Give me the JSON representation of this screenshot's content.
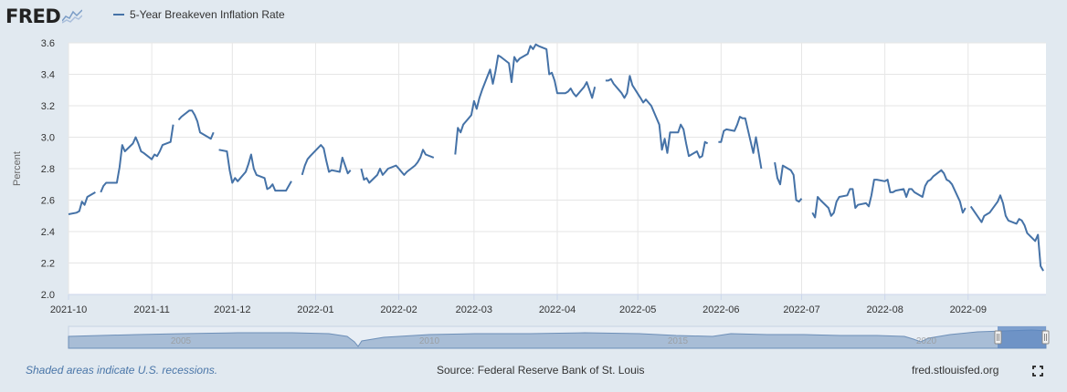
{
  "header": {
    "logo_text": "FRED",
    "legend_label": "5-Year Breakeven Inflation Rate"
  },
  "footer": {
    "recession_note": "Shaded areas indicate U.S. recessions.",
    "source": "Source: Federal Reserve Bank of St. Louis",
    "site": "fred.stlouisfed.org",
    "fullscreen_icon": "fullscreen-icon"
  },
  "colors": {
    "page_background": "#e1e9f0",
    "plot_background": "#ffffff",
    "series_line": "#4572a7",
    "gridline": "#e6e6e6",
    "navigator_fill": "#a8bdd6",
    "navigator_stroke": "#6d8fb8",
    "navigator_selected": "#5b86c0"
  },
  "navigator": {
    "year_labels": [
      "2005",
      "2010",
      "2015",
      "2020"
    ],
    "handle_icon": "drag-handle-icon"
  },
  "chart_data": {
    "type": "line",
    "title": "5-Year Breakeven Inflation Rate",
    "ylabel": "Percent",
    "ylim": [
      2.0,
      3.6
    ],
    "yticks": [
      "2.0",
      "2.2",
      "2.4",
      "2.6",
      "2.8",
      "3.0",
      "3.2",
      "3.4",
      "3.6"
    ],
    "xlim": [
      "2021-10-01",
      "2022-09-30"
    ],
    "xticks": [
      "2021-10",
      "2021-11",
      "2021-12",
      "2022-01",
      "2022-02",
      "2022-03",
      "2022-04",
      "2022-05",
      "2022-06",
      "2022-07",
      "2022-08",
      "2022-09"
    ],
    "grid": true,
    "legend_position": "top-left",
    "series": [
      {
        "name": "5-Year Breakeven Inflation Rate",
        "points": [
          [
            "2021-10-01",
            2.51
          ],
          [
            "2021-10-04",
            2.52
          ],
          [
            "2021-10-05",
            2.53
          ],
          [
            "2021-10-06",
            2.59
          ],
          [
            "2021-10-07",
            2.57
          ],
          [
            "2021-10-08",
            2.62
          ],
          [
            "2021-10-11",
            2.65
          ],
          [
            "2021-10-12",
            null
          ],
          [
            "2021-10-13",
            2.65
          ],
          [
            "2021-10-14",
            2.69
          ],
          [
            "2021-10-15",
            2.71
          ],
          [
            "2021-10-18",
            2.71
          ],
          [
            "2021-10-19",
            2.71
          ],
          [
            "2021-10-20",
            2.81
          ],
          [
            "2021-10-21",
            2.95
          ],
          [
            "2021-10-22",
            2.91
          ],
          [
            "2021-10-25",
            2.96
          ],
          [
            "2021-10-26",
            3.0
          ],
          [
            "2021-10-27",
            2.96
          ],
          [
            "2021-10-28",
            2.91
          ],
          [
            "2021-10-29",
            2.9
          ],
          [
            "2021-11-01",
            2.86
          ],
          [
            "2021-11-02",
            2.89
          ],
          [
            "2021-11-03",
            2.88
          ],
          [
            "2021-11-04",
            2.91
          ],
          [
            "2021-11-05",
            2.95
          ],
          [
            "2021-11-08",
            2.97
          ],
          [
            "2021-11-09",
            3.08
          ],
          [
            "2021-11-10",
            null
          ],
          [
            "2021-11-11",
            3.11
          ],
          [
            "2021-11-12",
            3.13
          ],
          [
            "2021-11-15",
            3.17
          ],
          [
            "2021-11-16",
            3.17
          ],
          [
            "2021-11-17",
            3.14
          ],
          [
            "2021-11-18",
            3.1
          ],
          [
            "2021-11-19",
            3.03
          ],
          [
            "2021-11-22",
            3.0
          ],
          [
            "2021-11-23",
            2.99
          ],
          [
            "2021-11-24",
            3.03
          ],
          [
            "2021-11-25",
            null
          ],
          [
            "2021-11-26",
            2.92
          ],
          [
            "2021-11-29",
            2.91
          ],
          [
            "2021-11-30",
            2.79
          ],
          [
            "2021-12-01",
            2.71
          ],
          [
            "2021-12-02",
            2.74
          ],
          [
            "2021-12-03",
            2.72
          ],
          [
            "2021-12-06",
            2.78
          ],
          [
            "2021-12-07",
            2.83
          ],
          [
            "2021-12-08",
            2.89
          ],
          [
            "2021-12-09",
            2.8
          ],
          [
            "2021-12-10",
            2.76
          ],
          [
            "2021-12-13",
            2.74
          ],
          [
            "2021-12-14",
            2.67
          ],
          [
            "2021-12-15",
            2.68
          ],
          [
            "2021-12-16",
            2.7
          ],
          [
            "2021-12-17",
            2.66
          ],
          [
            "2021-12-20",
            2.66
          ],
          [
            "2021-12-21",
            2.66
          ],
          [
            "2021-12-22",
            2.69
          ],
          [
            "2021-12-23",
            2.72
          ],
          [
            "2021-12-24",
            null
          ],
          [
            "2021-12-27",
            2.76
          ],
          [
            "2021-12-28",
            2.82
          ],
          [
            "2021-12-29",
            2.86
          ],
          [
            "2021-12-30",
            2.88
          ],
          [
            "2022-01-03",
            2.95
          ],
          [
            "2022-01-04",
            2.93
          ],
          [
            "2022-01-05",
            2.85
          ],
          [
            "2022-01-06",
            2.78
          ],
          [
            "2022-01-07",
            2.79
          ],
          [
            "2022-01-10",
            2.78
          ],
          [
            "2022-01-11",
            2.87
          ],
          [
            "2022-01-12",
            2.82
          ],
          [
            "2022-01-13",
            2.77
          ],
          [
            "2022-01-14",
            2.79
          ],
          [
            "2022-01-17",
            null
          ],
          [
            "2022-01-18",
            2.8
          ],
          [
            "2022-01-19",
            2.73
          ],
          [
            "2022-01-20",
            2.74
          ],
          [
            "2022-01-21",
            2.71
          ],
          [
            "2022-01-24",
            2.76
          ],
          [
            "2022-01-25",
            2.8
          ],
          [
            "2022-01-26",
            2.76
          ],
          [
            "2022-01-27",
            2.78
          ],
          [
            "2022-01-28",
            2.8
          ],
          [
            "2022-01-31",
            2.82
          ],
          [
            "2022-02-01",
            2.8
          ],
          [
            "2022-02-02",
            2.78
          ],
          [
            "2022-02-03",
            2.76
          ],
          [
            "2022-02-04",
            2.78
          ],
          [
            "2022-02-07",
            2.82
          ],
          [
            "2022-02-08",
            2.84
          ],
          [
            "2022-02-09",
            2.87
          ],
          [
            "2022-02-10",
            2.92
          ],
          [
            "2022-02-11",
            2.89
          ],
          [
            "2022-02-14",
            2.87
          ],
          [
            "2022-02-21",
            null
          ],
          [
            "2022-02-22",
            2.89
          ],
          [
            "2022-02-23",
            3.06
          ],
          [
            "2022-02-24",
            3.03
          ],
          [
            "2022-02-25",
            3.08
          ],
          [
            "2022-02-28",
            3.14
          ],
          [
            "2022-03-01",
            3.23
          ],
          [
            "2022-03-02",
            3.18
          ],
          [
            "2022-03-03",
            3.25
          ],
          [
            "2022-03-04",
            3.3
          ],
          [
            "2022-03-07",
            3.43
          ],
          [
            "2022-03-08",
            3.34
          ],
          [
            "2022-03-09",
            3.42
          ],
          [
            "2022-03-10",
            3.52
          ],
          [
            "2022-03-11",
            3.51
          ],
          [
            "2022-03-14",
            3.47
          ],
          [
            "2022-03-15",
            3.35
          ],
          [
            "2022-03-16",
            3.51
          ],
          [
            "2022-03-17",
            3.48
          ],
          [
            "2022-03-18",
            3.5
          ],
          [
            "2022-03-21",
            3.53
          ],
          [
            "2022-03-22",
            3.58
          ],
          [
            "2022-03-23",
            3.56
          ],
          [
            "2022-03-24",
            3.59
          ],
          [
            "2022-03-25",
            3.58
          ],
          [
            "2022-03-28",
            3.56
          ],
          [
            "2022-03-29",
            3.4
          ],
          [
            "2022-03-30",
            3.41
          ],
          [
            "2022-03-31",
            3.36
          ],
          [
            "2022-04-01",
            3.28
          ],
          [
            "2022-04-04",
            3.28
          ],
          [
            "2022-04-05",
            3.29
          ],
          [
            "2022-04-06",
            3.31
          ],
          [
            "2022-04-07",
            3.28
          ],
          [
            "2022-04-08",
            3.26
          ],
          [
            "2022-04-11",
            3.32
          ],
          [
            "2022-04-12",
            3.35
          ],
          [
            "2022-04-13",
            3.3
          ],
          [
            "2022-04-14",
            3.25
          ],
          [
            "2022-04-15",
            3.32
          ],
          [
            "2022-04-18",
            null
          ],
          [
            "2022-04-19",
            3.36
          ],
          [
            "2022-04-20",
            3.36
          ],
          [
            "2022-04-21",
            3.37
          ],
          [
            "2022-04-22",
            3.34
          ],
          [
            "2022-04-25",
            3.28
          ],
          [
            "2022-04-26",
            3.25
          ],
          [
            "2022-04-27",
            3.28
          ],
          [
            "2022-04-28",
            3.39
          ],
          [
            "2022-04-29",
            3.33
          ],
          [
            "2022-05-02",
            3.25
          ],
          [
            "2022-05-03",
            3.22
          ],
          [
            "2022-05-04",
            3.24
          ],
          [
            "2022-05-05",
            3.22
          ],
          [
            "2022-05-06",
            3.2
          ],
          [
            "2022-05-09",
            3.08
          ],
          [
            "2022-05-10",
            2.92
          ],
          [
            "2022-05-11",
            2.99
          ],
          [
            "2022-05-12",
            2.9
          ],
          [
            "2022-05-13",
            3.03
          ],
          [
            "2022-05-16",
            3.03
          ],
          [
            "2022-05-17",
            3.08
          ],
          [
            "2022-05-18",
            3.05
          ],
          [
            "2022-05-19",
            2.96
          ],
          [
            "2022-05-20",
            2.88
          ],
          [
            "2022-05-23",
            2.91
          ],
          [
            "2022-05-24",
            2.87
          ],
          [
            "2022-05-25",
            2.88
          ],
          [
            "2022-05-26",
            2.97
          ],
          [
            "2022-05-27",
            2.96
          ],
          [
            "2022-05-30",
            null
          ],
          [
            "2022-05-31",
            2.97
          ],
          [
            "2022-06-01",
            2.97
          ],
          [
            "2022-06-02",
            3.04
          ],
          [
            "2022-06-03",
            3.05
          ],
          [
            "2022-06-06",
            3.04
          ],
          [
            "2022-06-07",
            3.08
          ],
          [
            "2022-06-08",
            3.13
          ],
          [
            "2022-06-09",
            3.12
          ],
          [
            "2022-06-10",
            3.12
          ],
          [
            "2022-06-13",
            2.9
          ],
          [
            "2022-06-14",
            3.0
          ],
          [
            "2022-06-15",
            2.9
          ],
          [
            "2022-06-16",
            2.8
          ],
          [
            "2022-06-17",
            null
          ],
          [
            "2022-06-21",
            2.84
          ],
          [
            "2022-06-22",
            2.74
          ],
          [
            "2022-06-23",
            2.7
          ],
          [
            "2022-06-24",
            2.82
          ],
          [
            "2022-06-27",
            2.79
          ],
          [
            "2022-06-28",
            2.76
          ],
          [
            "2022-06-29",
            2.6
          ],
          [
            "2022-06-30",
            2.59
          ],
          [
            "2022-07-01",
            2.61
          ],
          [
            "2022-07-04",
            null
          ],
          [
            "2022-07-05",
            2.52
          ],
          [
            "2022-07-06",
            2.49
          ],
          [
            "2022-07-07",
            2.62
          ],
          [
            "2022-07-08",
            2.6
          ],
          [
            "2022-07-11",
            2.55
          ],
          [
            "2022-07-12",
            2.5
          ],
          [
            "2022-07-13",
            2.52
          ],
          [
            "2022-07-14",
            2.59
          ],
          [
            "2022-07-15",
            2.62
          ],
          [
            "2022-07-18",
            2.63
          ],
          [
            "2022-07-19",
            2.67
          ],
          [
            "2022-07-20",
            2.67
          ],
          [
            "2022-07-21",
            2.55
          ],
          [
            "2022-07-22",
            2.57
          ],
          [
            "2022-07-25",
            2.58
          ],
          [
            "2022-07-26",
            2.56
          ],
          [
            "2022-07-27",
            2.63
          ],
          [
            "2022-07-28",
            2.73
          ],
          [
            "2022-07-29",
            2.73
          ],
          [
            "2022-08-01",
            2.72
          ],
          [
            "2022-08-02",
            2.73
          ],
          [
            "2022-08-03",
            2.65
          ],
          [
            "2022-08-04",
            2.65
          ],
          [
            "2022-08-05",
            2.66
          ],
          [
            "2022-08-08",
            2.67
          ],
          [
            "2022-08-09",
            2.62
          ],
          [
            "2022-08-10",
            2.67
          ],
          [
            "2022-08-11",
            2.67
          ],
          [
            "2022-08-12",
            2.65
          ],
          [
            "2022-08-15",
            2.62
          ],
          [
            "2022-08-16",
            2.69
          ],
          [
            "2022-08-17",
            2.72
          ],
          [
            "2022-08-18",
            2.73
          ],
          [
            "2022-08-19",
            2.75
          ],
          [
            "2022-08-22",
            2.79
          ],
          [
            "2022-08-23",
            2.77
          ],
          [
            "2022-08-24",
            2.73
          ],
          [
            "2022-08-25",
            2.72
          ],
          [
            "2022-08-26",
            2.7
          ],
          [
            "2022-08-29",
            2.59
          ],
          [
            "2022-08-30",
            2.52
          ],
          [
            "2022-08-31",
            2.55
          ],
          [
            "2022-09-01",
            null
          ],
          [
            "2022-09-02",
            2.56
          ],
          [
            "2022-09-06",
            2.46
          ],
          [
            "2022-09-07",
            2.5
          ],
          [
            "2022-09-08",
            2.51
          ],
          [
            "2022-09-09",
            2.52
          ],
          [
            "2022-09-12",
            2.59
          ],
          [
            "2022-09-13",
            2.63
          ],
          [
            "2022-09-14",
            2.58
          ],
          [
            "2022-09-15",
            2.5
          ],
          [
            "2022-09-16",
            2.47
          ],
          [
            "2022-09-19",
            2.45
          ],
          [
            "2022-09-20",
            2.48
          ],
          [
            "2022-09-21",
            2.47
          ],
          [
            "2022-09-22",
            2.44
          ],
          [
            "2022-09-23",
            2.39
          ],
          [
            "2022-09-26",
            2.34
          ],
          [
            "2022-09-27",
            2.38
          ],
          [
            "2022-09-28",
            2.18
          ],
          [
            "2022-09-29",
            2.15
          ]
        ]
      }
    ]
  }
}
